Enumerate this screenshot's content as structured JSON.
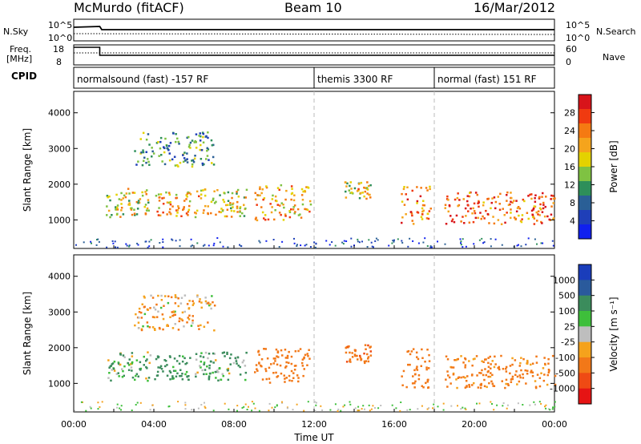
{
  "header": {
    "station": "McMurdo (fitACF)",
    "beam": "Beam 10",
    "date": "16/Mar/2012"
  },
  "strip_labels": {
    "nsky": "N.Sky",
    "nsearch": "N.Search",
    "freq_line1": "Freq.",
    "freq_line2": "[MHz]",
    "nave": "Nave",
    "cpid": "CPID",
    "sky_tick_top": "10^5",
    "sky_tick_bottom": "10^0",
    "freq_tick_top": "18",
    "freq_tick_bottom": "8",
    "nave_tick_top": "60",
    "nave_tick_bottom": "0"
  },
  "cpid_segments": [
    {
      "start_hr": 0,
      "end_hr": 12,
      "label": "normalsound (fast) -157 RF"
    },
    {
      "start_hr": 12,
      "end_hr": 18,
      "label": "themis 3300 RF"
    },
    {
      "start_hr": 18,
      "end_hr": 24,
      "label": "normal (fast) 151 RF"
    }
  ],
  "colorbars": {
    "power": {
      "label": "Power [dB]",
      "ticks": [
        "28",
        "24",
        "20",
        "16",
        "12",
        "8",
        "4"
      ],
      "colors": [
        "#d8141a",
        "#f03a10",
        "#f57a12",
        "#f5a41c",
        "#e4d200",
        "#7fc242",
        "#2e8f5a",
        "#2a5f96",
        "#1f3fb8",
        "#1020ee"
      ]
    },
    "velocity": {
      "label": "Velocity [m s⁻¹]",
      "ticks": [
        "1000",
        "500",
        "100",
        "25",
        "-25",
        "-100",
        "-500",
        "-1000"
      ],
      "colors": [
        "#1a3dbb",
        "#2a5a9c",
        "#3b8c5c",
        "#3ebf3b",
        "#bebebe",
        "#f5a21c",
        "#f27818",
        "#ef4a14",
        "#e61414"
      ]
    }
  },
  "chart_data": [
    {
      "type": "heatmap",
      "panel": "power",
      "ylabel": "Slant Range [km]",
      "xlabel": "",
      "y_ticks": [
        1000,
        2000,
        3000,
        4000
      ],
      "ylim": [
        200,
        4600
      ],
      "xlim": [
        0,
        24
      ],
      "color_range": [
        0,
        30
      ],
      "regions": [
        {
          "t0": 1.6,
          "t1": 3.8,
          "r0": 1100,
          "r1": 1900,
          "level": 16
        },
        {
          "t0": 4.0,
          "t1": 5.8,
          "r0": 1100,
          "r1": 1800,
          "level": 20
        },
        {
          "t0": 6.0,
          "t1": 8.6,
          "r0": 1100,
          "r1": 1900,
          "level": 18
        },
        {
          "t0": 9.0,
          "t1": 11.8,
          "r0": 1000,
          "r1": 2000,
          "level": 20
        },
        {
          "t0": 13.5,
          "t1": 14.8,
          "r0": 1600,
          "r1": 2100,
          "level": 18
        },
        {
          "t0": 16.3,
          "t1": 17.8,
          "r0": 900,
          "r1": 2000,
          "level": 22
        },
        {
          "t0": 18.5,
          "t1": 24.0,
          "r0": 900,
          "r1": 1800,
          "level": 24
        },
        {
          "t0": 3.0,
          "t1": 7.0,
          "r0": 2500,
          "r1": 3500,
          "level": 10
        }
      ]
    },
    {
      "type": "heatmap",
      "panel": "velocity",
      "ylabel": "Slant Range [km]",
      "xlabel": "Time UT",
      "y_ticks": [
        1000,
        2000,
        3000,
        4000
      ],
      "ylim": [
        200,
        4600
      ],
      "xlim": [
        0,
        24
      ],
      "x_ticks": [
        "00:00",
        "04:00",
        "08:00",
        "12:00",
        "16:00",
        "20:00",
        "00:00"
      ],
      "color_range": [
        -1000,
        1000
      ],
      "regions": [
        {
          "t0": 1.6,
          "t1": 3.8,
          "r0": 1100,
          "r1": 1900,
          "velocity": 100
        },
        {
          "t0": 4.0,
          "t1": 5.8,
          "r0": 1100,
          "r1": 1800,
          "velocity": 200
        },
        {
          "t0": 6.0,
          "t1": 8.6,
          "r0": 1100,
          "r1": 1900,
          "velocity": 100
        },
        {
          "t0": 9.0,
          "t1": 11.8,
          "r0": 1000,
          "r1": 2000,
          "velocity": -300
        },
        {
          "t0": 13.5,
          "t1": 14.8,
          "r0": 1600,
          "r1": 2100,
          "velocity": -400
        },
        {
          "t0": 16.3,
          "t1": 17.8,
          "r0": 900,
          "r1": 2000,
          "velocity": -300
        },
        {
          "t0": 18.5,
          "t1": 24.0,
          "r0": 900,
          "r1": 1800,
          "velocity": -200
        },
        {
          "t0": 3.0,
          "t1": 7.0,
          "r0": 2500,
          "r1": 3500,
          "velocity": -100
        }
      ]
    }
  ]
}
